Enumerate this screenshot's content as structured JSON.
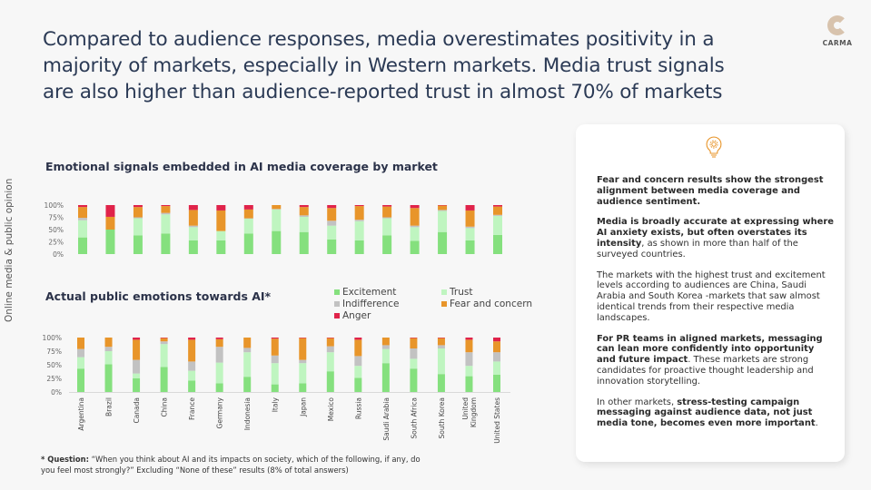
{
  "header": {
    "title": "Compared to audience responses, media overestimates positivity in a majority of markets, especially in Western markets. Media trust signals are also higher than audience-reported trust in almost 70% of markets",
    "logo_text": "CARMA",
    "side_label": "Online media & public opinion"
  },
  "colors": {
    "Excitement": "#85e07e",
    "Trust": "#bff5c0",
    "Indifference": "#c2c2c2",
    "Fear and concern": "#e8952a",
    "Anger": "#e0234a"
  },
  "legend": [
    "Excitement",
    "Trust",
    "Indifference",
    "Fear and concern",
    "Anger"
  ],
  "chart_data": [
    {
      "type": "bar",
      "stacked": true,
      "title": "Emotional signals embedded in AI media coverage by market",
      "ylim": [
        0,
        100
      ],
      "yticks": [
        "0%",
        "25%",
        "50%",
        "75%",
        "100%"
      ],
      "categories": [
        "Argentina",
        "Brazil",
        "Canada",
        "China",
        "France",
        "Germany",
        "Indonesia",
        "Italy",
        "Japan",
        "Mexico",
        "Russia",
        "Saudi Arabia",
        "South Africa",
        "South Korea",
        "United Kingdom",
        "United States"
      ],
      "show_category_labels": false,
      "series": [
        {
          "name": "Excitement",
          "values": [
            34,
            50,
            38,
            42,
            28,
            28,
            42,
            47,
            45,
            30,
            28,
            38,
            27,
            45,
            28,
            39
          ]
        },
        {
          "name": "Trust",
          "values": [
            35,
            0,
            35,
            39,
            27,
            19,
            30,
            44,
            31,
            28,
            39,
            35,
            28,
            43,
            25,
            39
          ]
        },
        {
          "name": "Indifference",
          "values": [
            5,
            0,
            2,
            3,
            3,
            0,
            1,
            1,
            3,
            10,
            3,
            2,
            3,
            2,
            3,
            2
          ]
        },
        {
          "name": "Fear and concern",
          "values": [
            22,
            26,
            21,
            14,
            32,
            42,
            18,
            8,
            17,
            26,
            28,
            22,
            36,
            9,
            33,
            17
          ]
        },
        {
          "name": "Anger",
          "values": [
            4,
            24,
            4,
            2,
            10,
            11,
            9,
            0,
            4,
            6,
            2,
            3,
            6,
            1,
            11,
            3
          ]
        }
      ]
    },
    {
      "type": "bar",
      "stacked": true,
      "title": "Actual public emotions towards AI*",
      "ylim": [
        0,
        100
      ],
      "yticks": [
        "0%",
        "25%",
        "50%",
        "75%",
        "100%"
      ],
      "categories": [
        "Argentina",
        "Brazil",
        "Canada",
        "China",
        "France",
        "Germany",
        "Indonesia",
        "Italy",
        "Japan",
        "Mexico",
        "Russia",
        "Saudi Arabia",
        "South Africa",
        "South Korea",
        "United Kingdom",
        "United States"
      ],
      "show_category_labels": true,
      "series": [
        {
          "name": "Excitement",
          "values": [
            43,
            51,
            25,
            46,
            21,
            16,
            28,
            14,
            16,
            38,
            26,
            53,
            43,
            33,
            29,
            32
          ]
        },
        {
          "name": "Trust",
          "values": [
            21,
            24,
            9,
            42,
            18,
            38,
            45,
            39,
            37,
            35,
            22,
            26,
            18,
            47,
            19,
            24
          ]
        },
        {
          "name": "Indifference",
          "values": [
            15,
            8,
            25,
            5,
            17,
            29,
            8,
            14,
            6,
            11,
            18,
            7,
            19,
            6,
            25,
            17
          ]
        },
        {
          "name": "Fear and concern",
          "values": [
            21,
            17,
            37,
            6,
            40,
            14,
            19,
            31,
            40,
            15,
            30,
            14,
            19,
            13,
            23,
            20
          ]
        },
        {
          "name": "Anger",
          "values": [
            0,
            0,
            4,
            1,
            4,
            3,
            0,
            2,
            1,
            1,
            4,
            0,
            1,
            1,
            4,
            7
          ]
        }
      ]
    }
  ],
  "footnote": {
    "label": "* Question:",
    "text": " “When you think about AI and its impacts on society, which of the following, if any, do you feel most strongly?” Excluding “None of these” results (8% of total answers)"
  },
  "panel": {
    "icon": "lightbulb-gear-icon",
    "paragraphs": [
      [
        {
          "b": true,
          "t": "Fear and concern results show the strongest alignment between media coverage and audience sentiment."
        }
      ],
      [
        {
          "b": true,
          "t": "Media is broadly accurate at expressing where AI anxiety exists, but often overstates its intensity"
        },
        {
          "b": false,
          "t": ", as shown in more than half of the surveyed countries."
        }
      ],
      [
        {
          "b": false,
          "t": "The markets with the highest trust and excitement levels according to audiences are China, Saudi Arabia and South Korea -markets that saw almost identical trends from their respective media landscapes."
        }
      ],
      [
        {
          "b": true,
          "t": "For PR teams in aligned markets, messaging can lean more confidently into opportunity and future impact"
        },
        {
          "b": false,
          "t": ". These markets are strong candidates for proactive thought leadership and innovation storytelling."
        }
      ],
      [
        {
          "b": false,
          "t": "In other markets, "
        },
        {
          "b": true,
          "t": "stress-testing campaign messaging against audience data, not just media tone, becomes even more important"
        },
        {
          "b": false,
          "t": "."
        }
      ]
    ]
  }
}
